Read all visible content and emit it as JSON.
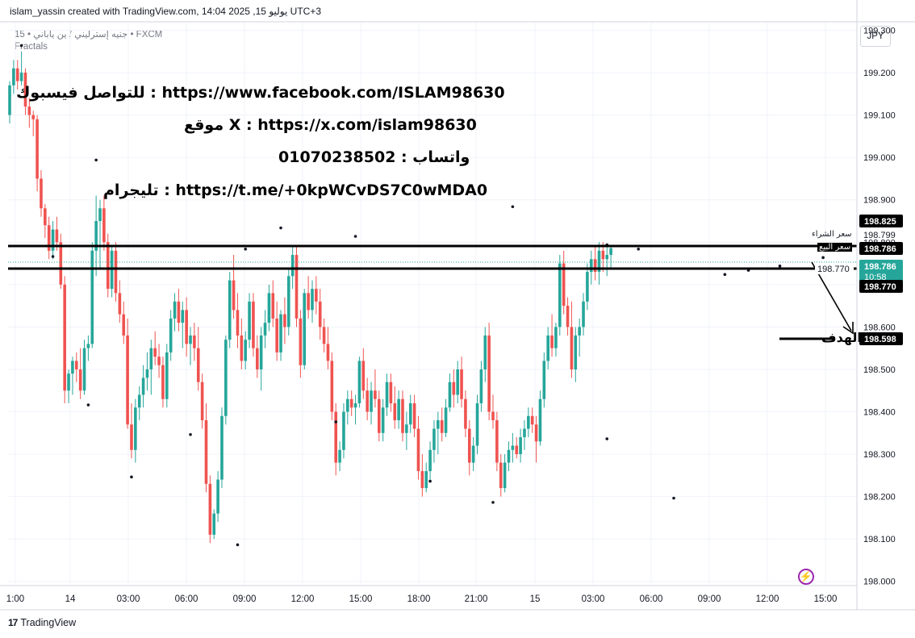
{
  "header": {
    "title": "islam_yassin created with TradingView.com, 14:04 2025 ,يوليو 15 UTC+3"
  },
  "symbol_bar": {
    "symbol_label": "15 • جنيه إسترليني / ين ياباني • FXCM",
    "indicator": "Fractals"
  },
  "price_axis": {
    "currency": "JPY"
  },
  "annotations": {
    "facebook": "للتواصل فيسبوك  :   https://www.facebook.com/ISLAM98630",
    "x": "موقع X : https://x.com/islam98630",
    "whatsapp": "واتساب : 01070238502",
    "telegram": "تليجرام : https://t.me/+0kpWCvDS7C0wMDA0",
    "target": "الهدف",
    "buy_price": "سعر الشراء",
    "sell_price": "سعر البيع"
  },
  "footer": {
    "brand": "TradingView"
  },
  "colors": {
    "up": "#26a69a",
    "down": "#ef5350",
    "level_line": "#000000",
    "arrow": "#000000",
    "grid": "#f0f3fa",
    "fractal": "#131722"
  },
  "chart_data": {
    "type": "candlestick",
    "title": "جنيه إسترليني / ين ياباني",
    "timeframe": "15",
    "ylim": [
      197.99,
      199.32
    ],
    "y_ticks": [
      "199.300",
      "199.200",
      "199.100",
      "199.000",
      "198.900",
      "198.800",
      "198.700",
      "198.600",
      "198.500",
      "198.400",
      "198.300",
      "198.200",
      "198.100",
      "198.000"
    ],
    "x_ticks": [
      "1:00",
      "14",
      "03:00",
      "06:00",
      "09:00",
      "12:00",
      "15:00",
      "18:00",
      "21:00",
      "15",
      "03:00",
      "06:00",
      "09:00",
      "12:00",
      "15:00"
    ],
    "price_labels": [
      {
        "value": "198.825",
        "style": "dark"
      },
      {
        "value": "198.799",
        "style": "plain"
      },
      {
        "value": "198.786",
        "style": "dark"
      },
      {
        "value": "198.786",
        "style": "green",
        "sub": "10:58"
      },
      {
        "value": "198.770",
        "style": "dark"
      },
      {
        "value": "198.598",
        "style": "dark"
      }
    ],
    "levels": [
      {
        "price": 198.786,
        "label": "198.786"
      },
      {
        "price": 198.77,
        "label": "198.770"
      },
      {
        "price": 198.598,
        "label": "198.598"
      }
    ],
    "candles": [
      [
        199.1,
        199.18,
        199.08,
        199.17
      ],
      [
        199.17,
        199.23,
        199.15,
        199.21
      ],
      [
        199.21,
        199.23,
        199.16,
        199.18
      ],
      [
        199.18,
        199.25,
        199.17,
        199.2
      ],
      [
        199.2,
        199.21,
        199.1,
        199.12
      ],
      [
        199.12,
        199.14,
        199.07,
        199.1
      ],
      [
        199.1,
        199.11,
        199.05,
        199.09
      ],
      [
        199.09,
        199.1,
        198.92,
        198.95
      ],
      [
        198.95,
        198.97,
        198.86,
        198.88
      ],
      [
        198.88,
        198.89,
        198.81,
        198.84
      ],
      [
        198.84,
        198.86,
        198.76,
        198.78
      ],
      [
        198.78,
        198.85,
        198.76,
        198.83
      ],
      [
        198.83,
        198.86,
        198.78,
        198.8
      ],
      [
        198.8,
        198.82,
        198.69,
        198.7
      ],
      [
        198.7,
        198.72,
        198.42,
        198.45
      ],
      [
        198.45,
        198.5,
        198.42,
        198.49
      ],
      [
        198.49,
        198.53,
        198.44,
        198.52
      ],
      [
        198.52,
        198.54,
        198.47,
        198.5
      ],
      [
        198.5,
        198.55,
        198.43,
        198.45
      ],
      [
        198.45,
        198.57,
        198.44,
        198.55
      ],
      [
        198.55,
        198.58,
        198.52,
        198.56
      ],
      [
        198.56,
        198.8,
        198.55,
        198.78
      ],
      [
        198.78,
        198.91,
        198.72,
        198.85
      ],
      [
        198.85,
        198.9,
        198.74,
        198.88
      ],
      [
        198.88,
        198.91,
        198.78,
        198.8
      ],
      [
        198.8,
        198.82,
        198.67,
        198.69
      ],
      [
        198.69,
        198.79,
        198.67,
        198.78
      ],
      [
        198.78,
        198.8,
        198.66,
        198.68
      ],
      [
        198.68,
        198.71,
        198.61,
        198.63
      ],
      [
        198.63,
        198.66,
        198.56,
        198.58
      ],
      [
        198.58,
        198.62,
        198.36,
        198.37
      ],
      [
        198.37,
        198.42,
        198.29,
        198.31
      ],
      [
        198.31,
        198.43,
        198.28,
        198.41
      ],
      [
        198.41,
        198.46,
        198.38,
        198.44
      ],
      [
        198.44,
        198.51,
        198.41,
        198.48
      ],
      [
        198.48,
        198.54,
        198.45,
        198.5
      ],
      [
        198.5,
        198.57,
        198.44,
        198.55
      ],
      [
        198.55,
        198.59,
        198.51,
        198.53
      ],
      [
        198.53,
        198.56,
        198.48,
        198.51
      ],
      [
        198.51,
        198.53,
        198.41,
        198.43
      ],
      [
        198.43,
        198.56,
        198.41,
        198.54
      ],
      [
        198.54,
        198.64,
        198.52,
        198.62
      ],
      [
        198.62,
        198.68,
        198.59,
        198.66
      ],
      [
        198.66,
        198.69,
        198.59,
        198.61
      ],
      [
        198.61,
        198.66,
        198.55,
        198.64
      ],
      [
        198.64,
        198.67,
        198.53,
        198.56
      ],
      [
        198.56,
        198.6,
        198.51,
        198.58
      ],
      [
        198.58,
        198.61,
        198.52,
        198.55
      ],
      [
        198.55,
        198.6,
        198.45,
        198.47
      ],
      [
        198.47,
        198.49,
        198.36,
        198.38
      ],
      [
        198.38,
        198.42,
        198.21,
        198.23
      ],
      [
        198.23,
        198.25,
        198.09,
        198.11
      ],
      [
        198.11,
        198.17,
        198.1,
        198.16
      ],
      [
        198.16,
        198.26,
        198.14,
        198.24
      ],
      [
        198.24,
        198.41,
        198.22,
        198.39
      ],
      [
        198.39,
        198.58,
        198.37,
        198.57
      ],
      [
        198.57,
        198.73,
        198.55,
        198.71
      ],
      [
        198.71,
        198.77,
        198.62,
        198.64
      ],
      [
        198.64,
        198.68,
        198.55,
        198.58
      ],
      [
        198.58,
        198.62,
        198.5,
        198.52
      ],
      [
        198.52,
        198.59,
        198.5,
        198.57
      ],
      [
        198.57,
        198.68,
        198.55,
        198.66
      ],
      [
        198.66,
        198.68,
        198.53,
        198.55
      ],
      [
        198.55,
        198.58,
        198.48,
        198.5
      ],
      [
        198.5,
        198.6,
        198.45,
        198.58
      ],
      [
        198.58,
        198.64,
        198.55,
        198.61
      ],
      [
        198.61,
        198.7,
        198.59,
        198.68
      ],
      [
        198.68,
        198.71,
        198.6,
        198.62
      ],
      [
        198.62,
        198.66,
        198.52,
        198.54
      ],
      [
        198.54,
        198.64,
        198.52,
        198.63
      ],
      [
        198.63,
        198.67,
        198.56,
        198.6
      ],
      [
        198.6,
        198.74,
        198.58,
        198.72
      ],
      [
        198.72,
        198.79,
        198.69,
        198.77
      ],
      [
        198.77,
        198.79,
        198.6,
        198.62
      ],
      [
        198.62,
        198.64,
        198.48,
        198.51
      ],
      [
        198.51,
        198.69,
        198.5,
        198.68
      ],
      [
        198.68,
        198.72,
        198.62,
        198.64
      ],
      [
        198.64,
        198.71,
        198.61,
        198.69
      ],
      [
        198.69,
        198.72,
        198.63,
        198.66
      ],
      [
        198.66,
        198.69,
        198.57,
        198.6
      ],
      [
        198.6,
        198.62,
        198.54,
        198.56
      ],
      [
        198.56,
        198.6,
        198.5,
        198.52
      ],
      [
        198.52,
        198.54,
        198.38,
        198.4
      ],
      [
        198.4,
        198.42,
        198.25,
        198.28
      ],
      [
        198.28,
        198.33,
        198.26,
        198.31
      ],
      [
        198.31,
        198.42,
        198.29,
        198.4
      ],
      [
        198.4,
        198.45,
        198.37,
        198.43
      ],
      [
        198.43,
        198.45,
        198.39,
        198.41
      ],
      [
        198.41,
        198.44,
        198.37,
        198.42
      ],
      [
        198.42,
        198.53,
        198.41,
        198.52
      ],
      [
        198.52,
        198.55,
        198.43,
        198.45
      ],
      [
        198.45,
        198.48,
        198.38,
        198.4
      ],
      [
        198.4,
        198.47,
        198.37,
        198.45
      ],
      [
        198.45,
        198.5,
        198.41,
        198.43
      ],
      [
        198.43,
        198.45,
        198.33,
        198.35
      ],
      [
        198.35,
        198.43,
        198.33,
        198.41
      ],
      [
        198.41,
        198.49,
        198.39,
        198.47
      ],
      [
        198.47,
        198.49,
        198.4,
        198.42
      ],
      [
        198.42,
        198.46,
        198.36,
        198.38
      ],
      [
        198.38,
        198.45,
        198.36,
        198.43
      ],
      [
        198.43,
        198.45,
        198.33,
        198.35
      ],
      [
        198.35,
        198.4,
        198.31,
        198.37
      ],
      [
        198.37,
        198.44,
        198.35,
        198.42
      ],
      [
        198.42,
        198.44,
        198.34,
        198.36
      ],
      [
        198.36,
        198.39,
        198.24,
        198.26
      ],
      [
        198.26,
        198.3,
        198.2,
        198.22
      ],
      [
        198.22,
        198.28,
        198.21,
        198.26
      ],
      [
        198.26,
        198.33,
        198.24,
        198.31
      ],
      [
        198.31,
        198.38,
        198.28,
        198.36
      ],
      [
        198.36,
        198.4,
        198.3,
        198.38
      ],
      [
        198.38,
        198.41,
        198.33,
        198.35
      ],
      [
        198.35,
        198.43,
        198.34,
        198.41
      ],
      [
        198.41,
        198.49,
        198.4,
        198.47
      ],
      [
        198.47,
        198.5,
        198.41,
        198.44
      ],
      [
        198.44,
        198.52,
        198.42,
        198.5
      ],
      [
        198.5,
        198.53,
        198.41,
        198.43
      ],
      [
        198.43,
        198.45,
        198.34,
        198.36
      ],
      [
        198.36,
        198.38,
        198.25,
        198.28
      ],
      [
        198.28,
        198.34,
        198.26,
        198.32
      ],
      [
        198.32,
        198.44,
        198.3,
        198.42
      ],
      [
        198.42,
        198.52,
        198.4,
        198.5
      ],
      [
        198.5,
        198.6,
        198.47,
        198.58
      ],
      [
        198.58,
        198.61,
        198.38,
        198.4
      ],
      [
        198.4,
        198.44,
        198.36,
        198.38
      ],
      [
        198.38,
        198.4,
        198.26,
        198.28
      ],
      [
        198.28,
        198.3,
        198.2,
        198.22
      ],
      [
        198.22,
        198.3,
        198.21,
        198.28
      ],
      [
        198.28,
        198.33,
        198.26,
        198.31
      ],
      [
        198.31,
        198.35,
        198.28,
        198.32
      ],
      [
        198.32,
        198.34,
        198.29,
        198.3
      ],
      [
        198.3,
        198.36,
        198.28,
        198.34
      ],
      [
        198.34,
        198.38,
        198.31,
        198.36
      ],
      [
        198.36,
        198.41,
        198.34,
        198.39
      ],
      [
        198.39,
        198.41,
        198.35,
        198.37
      ],
      [
        198.37,
        198.39,
        198.28,
        198.33
      ],
      [
        198.33,
        198.45,
        198.32,
        198.43
      ],
      [
        198.43,
        198.54,
        198.41,
        198.52
      ],
      [
        198.52,
        198.6,
        198.5,
        198.58
      ],
      [
        198.58,
        198.63,
        198.53,
        198.55
      ],
      [
        198.55,
        198.61,
        198.53,
        198.6
      ],
      [
        198.6,
        198.77,
        198.58,
        198.75
      ],
      [
        198.75,
        198.78,
        198.63,
        198.65
      ],
      [
        198.65,
        198.67,
        198.58,
        198.6
      ],
      [
        198.6,
        198.66,
        198.48,
        198.5
      ],
      [
        198.5,
        198.6,
        198.47,
        198.58
      ],
      [
        198.58,
        198.62,
        198.53,
        198.6
      ],
      [
        198.6,
        198.68,
        198.58,
        198.66
      ],
      [
        198.66,
        198.75,
        198.64,
        198.73
      ],
      [
        198.73,
        198.78,
        198.7,
        198.76
      ],
      [
        198.76,
        198.79,
        198.71,
        198.73
      ],
      [
        198.73,
        198.8,
        198.7,
        198.78
      ],
      [
        198.78,
        198.8,
        198.73,
        198.76
      ],
      [
        198.76,
        198.79,
        198.72,
        198.77
      ],
      [
        198.77,
        198.79,
        198.74,
        198.786
      ]
    ],
    "fractals_up": [
      [
        3,
        199.26
      ],
      [
        22,
        198.99
      ],
      [
        60,
        198.78
      ],
      [
        69,
        198.83
      ],
      [
        88,
        198.81
      ],
      [
        128,
        198.88
      ],
      [
        152,
        198.79
      ],
      [
        160,
        198.78
      ],
      [
        182,
        198.72
      ],
      [
        188,
        198.73
      ],
      [
        207,
        198.76
      ],
      [
        196,
        198.74
      ]
    ],
    "fractals_down": [
      [
        11,
        198.77
      ],
      [
        20,
        198.42
      ],
      [
        31,
        198.25
      ],
      [
        46,
        198.35
      ],
      [
        58,
        198.09
      ],
      [
        83,
        198.38
      ],
      [
        107,
        198.24
      ],
      [
        123,
        198.19
      ],
      [
        152,
        198.34
      ],
      [
        169,
        198.2
      ]
    ]
  }
}
